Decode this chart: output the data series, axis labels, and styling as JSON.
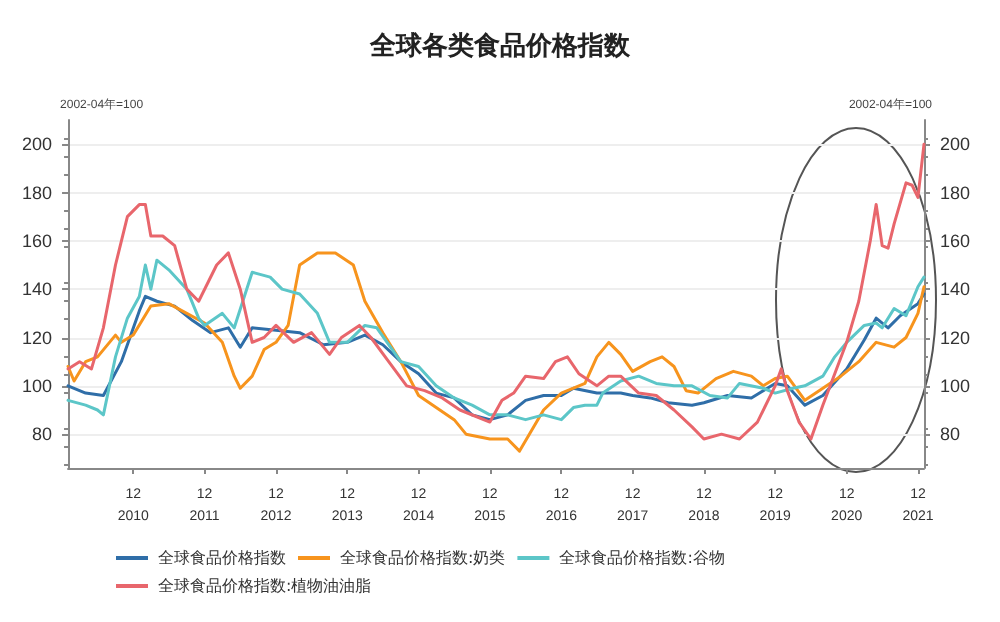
{
  "chart_data": {
    "type": "line",
    "title": "全球各类食品价格指数",
    "ylabel": "2002-04年=100",
    "y2label": "2002-04年=100",
    "xlim": [
      "2010-01",
      "2022-01"
    ],
    "xticks": [
      {
        "value": "2010-12",
        "label": "12\n2010"
      },
      {
        "value": "2011-12",
        "label": "12\n2011"
      },
      {
        "value": "2012-12",
        "label": "12\n2012"
      },
      {
        "value": "2013-12",
        "label": "12\n2013"
      },
      {
        "value": "2014-12",
        "label": "12\n2014"
      },
      {
        "value": "2015-12",
        "label": "12\n2015"
      },
      {
        "value": "2016-12",
        "label": "12\n2016"
      },
      {
        "value": "2017-12",
        "label": "12\n2017"
      },
      {
        "value": "2018-12",
        "label": "12\n2018"
      },
      {
        "value": "2019-12",
        "label": "12\n2019"
      },
      {
        "value": "2020-12",
        "label": "12\n2020"
      },
      {
        "value": "2021-12",
        "label": "12\n2021"
      }
    ],
    "ylim": [
      66,
      210
    ],
    "yticks": [
      80,
      100,
      120,
      140,
      160,
      180,
      200
    ],
    "y2lim": [
      66,
      210
    ],
    "y2ticks": [
      80,
      100,
      120,
      140,
      160,
      180,
      200
    ],
    "grid": "y",
    "legend": "bottom",
    "marker": "none",
    "line_style": "solid",
    "series": [
      {
        "name": "全球食品价格指数",
        "color": "#2f6ea8",
        "x": [
          "2010-01",
          "2010-04",
          "2010-07",
          "2010-10",
          "2011-01",
          "2011-02",
          "2011-04",
          "2011-07",
          "2011-10",
          "2012-01",
          "2012-04",
          "2012-06",
          "2012-08",
          "2012-12",
          "2013-04",
          "2013-08",
          "2013-12",
          "2014-03",
          "2014-06",
          "2014-09",
          "2014-12",
          "2015-03",
          "2015-06",
          "2015-09",
          "2015-12",
          "2016-03",
          "2016-06",
          "2016-09",
          "2016-12",
          "2017-02",
          "2017-06",
          "2017-10",
          "2017-12",
          "2018-03",
          "2018-06",
          "2018-10",
          "2018-12",
          "2019-04",
          "2019-08",
          "2019-12",
          "2020-02",
          "2020-05",
          "2020-08",
          "2020-12",
          "2021-03",
          "2021-05",
          "2021-07",
          "2021-09",
          "2021-12",
          "2022-01"
        ],
        "values": [
          100,
          97,
          96,
          110,
          131,
          137,
          135,
          133,
          127,
          122,
          124,
          116,
          124,
          123,
          122,
          117,
          118,
          121,
          117,
          110,
          105,
          97,
          95,
          88,
          86,
          88,
          94,
          96,
          96,
          99,
          97,
          97,
          96,
          95,
          93,
          92,
          93,
          96,
          95,
          101,
          100,
          92,
          96,
          107,
          119,
          128,
          124,
          129,
          134,
          138
        ]
      },
      {
        "name": "全球食品价格指数:奶类",
        "color": "#f7941d",
        "x": [
          "2010-01",
          "2010-02",
          "2010-04",
          "2010-06",
          "2010-09",
          "2010-10",
          "2010-12",
          "2011-03",
          "2011-06",
          "2011-09",
          "2011-12",
          "2012-03",
          "2012-05",
          "2012-06",
          "2012-08",
          "2012-10",
          "2012-12",
          "2013-02",
          "2013-04",
          "2013-07",
          "2013-10",
          "2014-01",
          "2014-03",
          "2014-06",
          "2014-09",
          "2014-12",
          "2015-03",
          "2015-06",
          "2015-08",
          "2015-12",
          "2016-03",
          "2016-05",
          "2016-09",
          "2016-12",
          "2017-04",
          "2017-06",
          "2017-08",
          "2017-10",
          "2017-12",
          "2018-03",
          "2018-05",
          "2018-07",
          "2018-09",
          "2018-11",
          "2019-02",
          "2019-05",
          "2019-08",
          "2019-10",
          "2019-12",
          "2020-02",
          "2020-05",
          "2020-08",
          "2020-11",
          "2021-02",
          "2021-05",
          "2021-08",
          "2021-10",
          "2021-12",
          "2022-01"
        ],
        "values": [
          108,
          102,
          110,
          112,
          121,
          118,
          121,
          133,
          134,
          130,
          126,
          118,
          104,
          99,
          104,
          115,
          118,
          125,
          150,
          155,
          155,
          150,
          135,
          122,
          110,
          96,
          91,
          86,
          80,
          78,
          78,
          73,
          90,
          97,
          101,
          112,
          118,
          113,
          106,
          110,
          112,
          108,
          98,
          97,
          103,
          106,
          104,
          100,
          103,
          104,
          94,
          99,
          104,
          110,
          118,
          116,
          120,
          130,
          141
        ]
      },
      {
        "name": "全球食品价格指数:谷物",
        "color": "#5cc6c8",
        "x": [
          "2010-01",
          "2010-04",
          "2010-06",
          "2010-07",
          "2010-09",
          "2010-11",
          "2011-01",
          "2011-02",
          "2011-03",
          "2011-04",
          "2011-06",
          "2011-09",
          "2011-11",
          "2011-12",
          "2012-03",
          "2012-05",
          "2012-08",
          "2012-11",
          "2013-01",
          "2013-04",
          "2013-07",
          "2013-09",
          "2013-12",
          "2014-03",
          "2014-05",
          "2014-09",
          "2014-12",
          "2015-03",
          "2015-06",
          "2015-09",
          "2015-12",
          "2016-03",
          "2016-06",
          "2016-09",
          "2016-12",
          "2017-02",
          "2017-04",
          "2017-06",
          "2017-07",
          "2017-10",
          "2018-01",
          "2018-04",
          "2018-07",
          "2018-10",
          "2019-01",
          "2019-04",
          "2019-06",
          "2019-10",
          "2019-12",
          "2020-03",
          "2020-05",
          "2020-08",
          "2020-10",
          "2020-12",
          "2021-03",
          "2021-05",
          "2021-06",
          "2021-08",
          "2021-10",
          "2021-12",
          "2022-01"
        ],
        "values": [
          94,
          92,
          90,
          88,
          112,
          128,
          137,
          150,
          140,
          152,
          148,
          140,
          128,
          125,
          130,
          124,
          147,
          145,
          140,
          138,
          130,
          118,
          118,
          125,
          124,
          110,
          108,
          100,
          95,
          92,
          88,
          88,
          86,
          88,
          86,
          91,
          92,
          92,
          97,
          102,
          104,
          101,
          100,
          100,
          96,
          95,
          101,
          99,
          97,
          99,
          100,
          104,
          112,
          118,
          125,
          126,
          124,
          132,
          129,
          141,
          145
        ]
      },
      {
        "name": "全球食品价格指数:植物油油脂",
        "color": "#e8666c",
        "x": [
          "2010-01",
          "2010-03",
          "2010-05",
          "2010-07",
          "2010-09",
          "2010-11",
          "2011-01",
          "2011-02",
          "2011-03",
          "2011-05",
          "2011-07",
          "2011-09",
          "2011-11",
          "2012-02",
          "2012-04",
          "2012-06",
          "2012-08",
          "2012-10",
          "2012-12",
          "2013-03",
          "2013-06",
          "2013-09",
          "2013-11",
          "2014-02",
          "2014-04",
          "2014-07",
          "2014-10",
          "2015-01",
          "2015-04",
          "2015-07",
          "2015-10",
          "2015-12",
          "2016-02",
          "2016-04",
          "2016-06",
          "2016-09",
          "2016-11",
          "2017-01",
          "2017-03",
          "2017-06",
          "2017-08",
          "2017-10",
          "2018-01",
          "2018-04",
          "2018-07",
          "2018-10",
          "2018-12",
          "2019-03",
          "2019-06",
          "2019-09",
          "2019-12",
          "2020-01",
          "2020-02",
          "2020-04",
          "2020-06",
          "2020-08",
          "2020-10",
          "2020-12",
          "2021-02",
          "2021-04",
          "2021-05",
          "2021-06",
          "2021-07",
          "2021-08",
          "2021-10",
          "2021-11",
          "2021-12",
          "2022-01"
        ],
        "values": [
          107,
          110,
          107,
          124,
          150,
          170,
          175,
          175,
          162,
          162,
          158,
          140,
          135,
          150,
          155,
          140,
          118,
          120,
          125,
          118,
          122,
          113,
          120,
          125,
          120,
          110,
          100,
          98,
          95,
          90,
          87,
          85,
          94,
          97,
          104,
          103,
          110,
          112,
          105,
          100,
          104,
          104,
          97,
          96,
          90,
          83,
          78,
          80,
          78,
          85,
          100,
          107,
          98,
          85,
          78,
          92,
          105,
          118,
          135,
          160,
          175,
          158,
          157,
          167,
          184,
          183,
          178,
          200
        ]
      }
    ]
  }
}
